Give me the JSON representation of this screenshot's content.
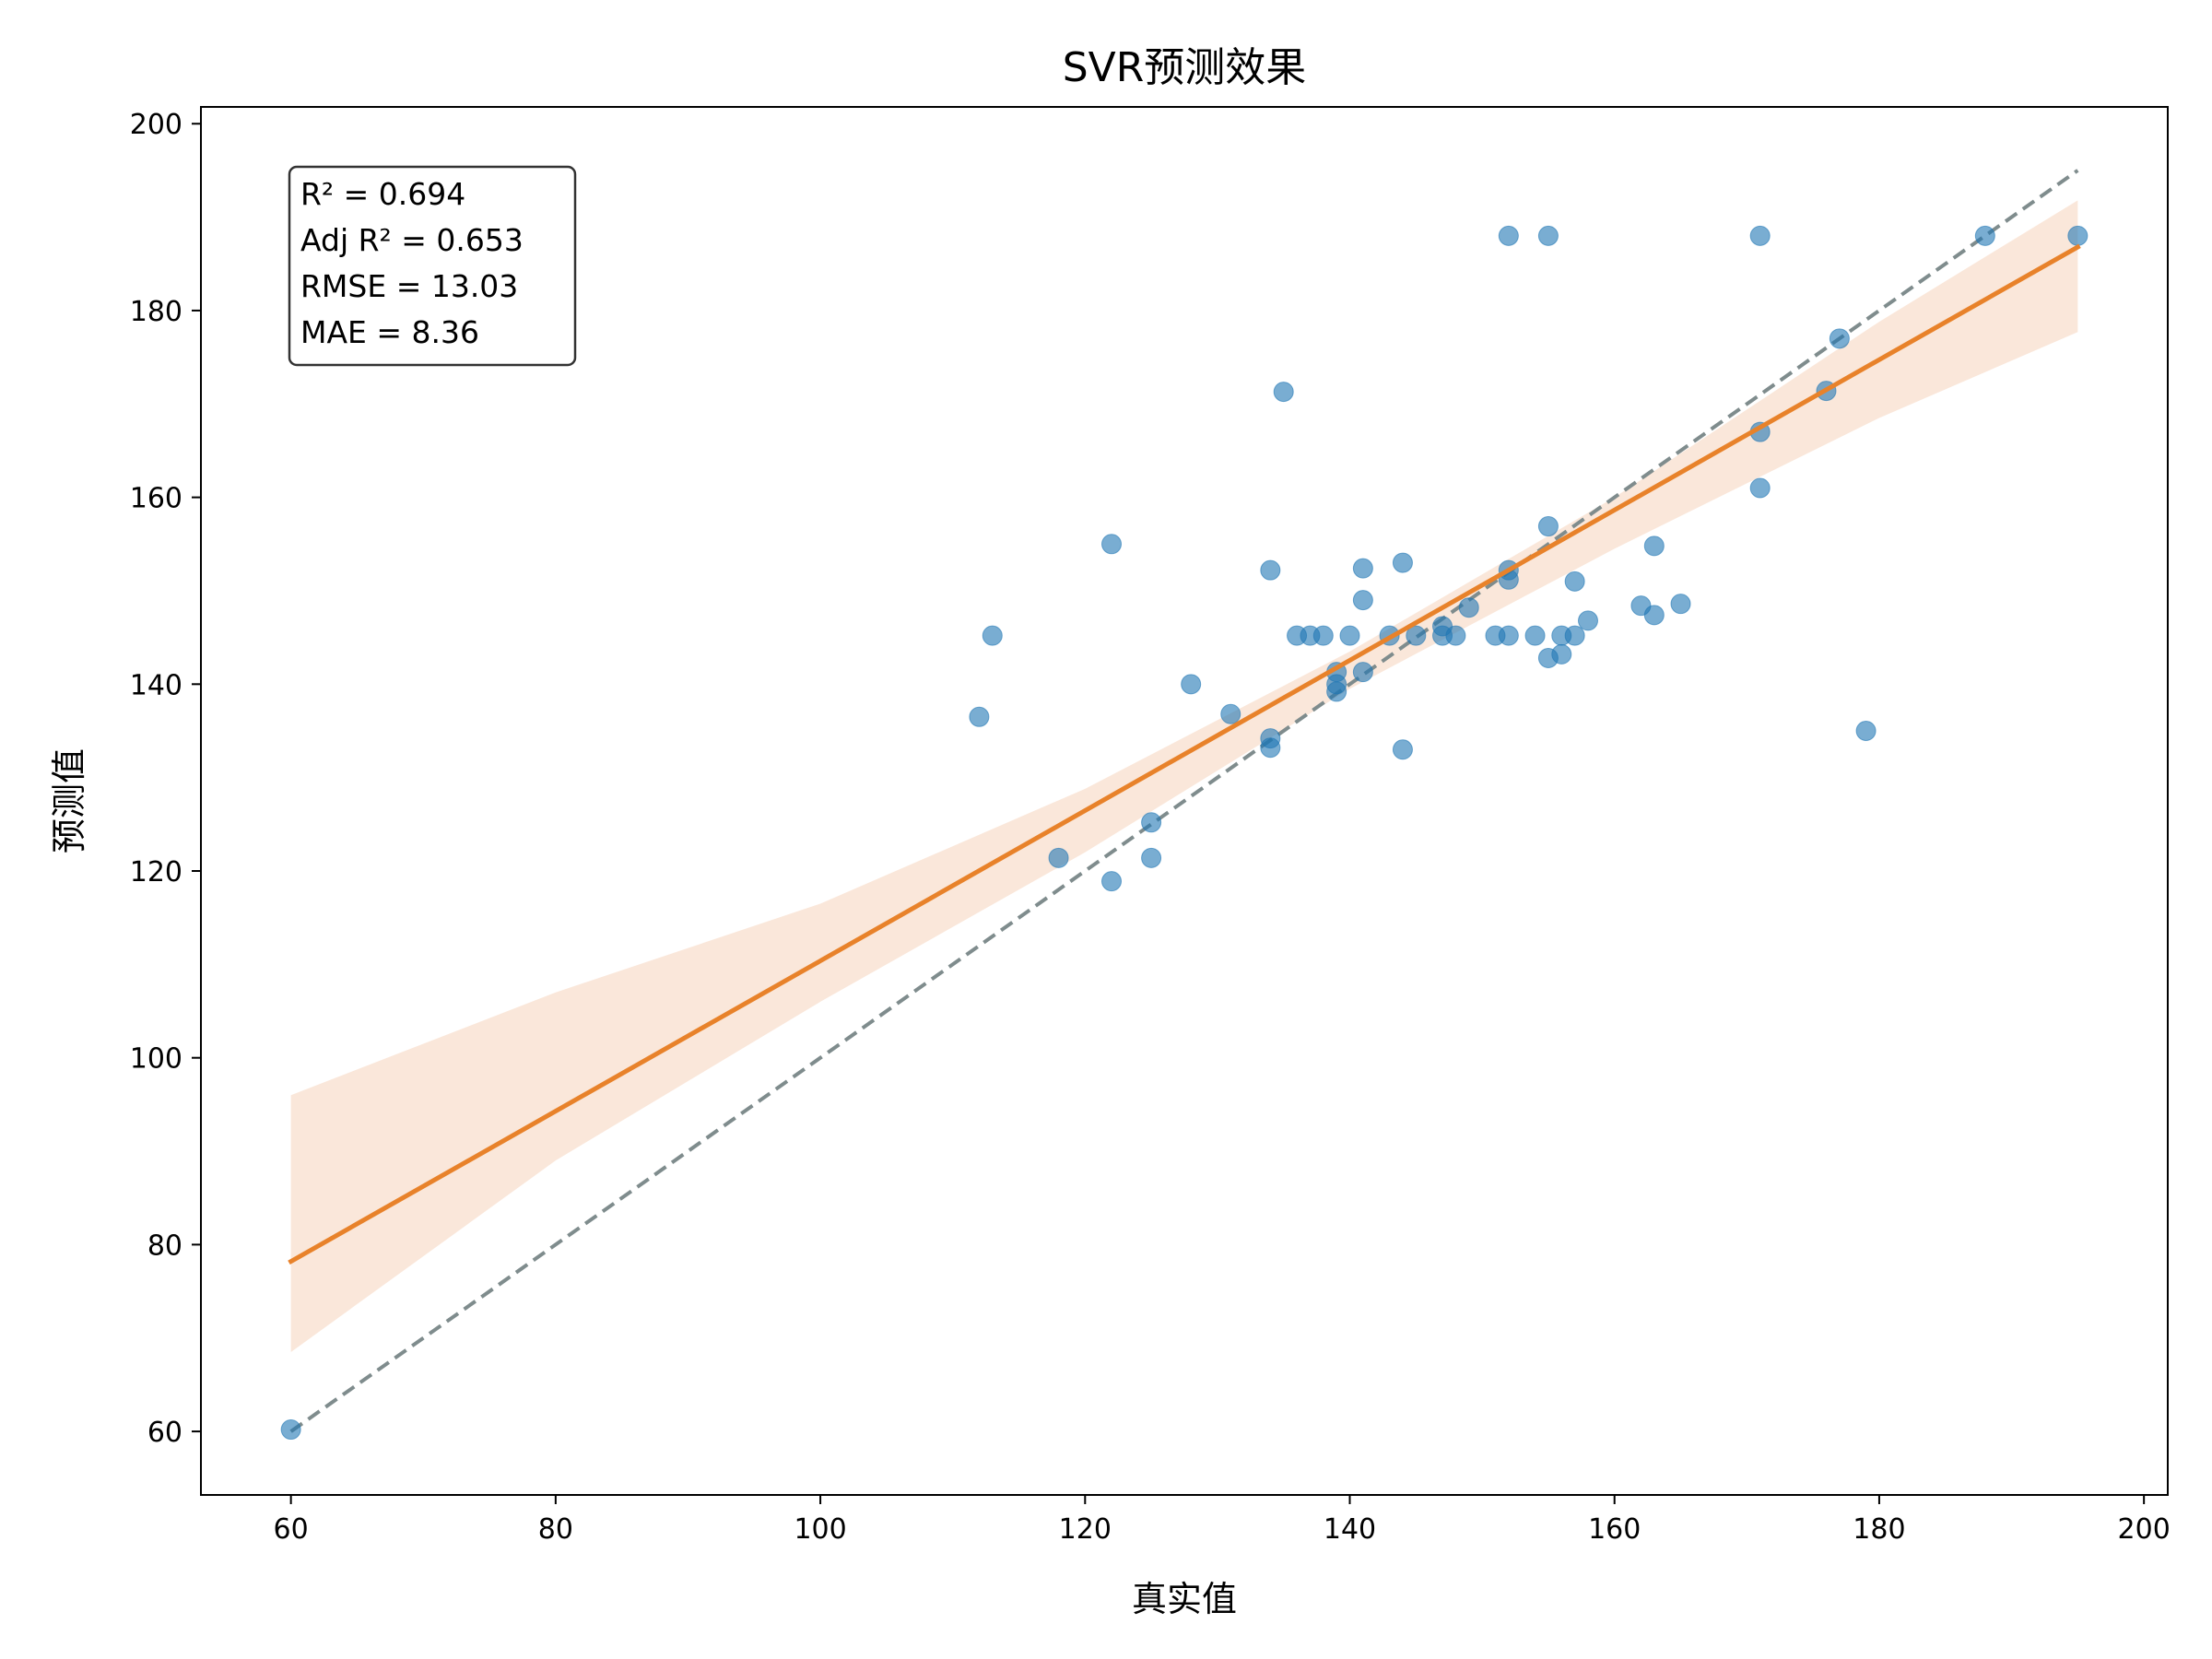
{
  "chart_data": {
    "type": "scatter",
    "title": "SVR预测效果",
    "xlabel": "真实值",
    "ylabel": "预测值",
    "xlim": [
      53.2,
      201.8
    ],
    "ylim": [
      53.2,
      201.8
    ],
    "xticks": [
      60,
      80,
      100,
      120,
      140,
      160,
      180,
      200
    ],
    "yticks": [
      60,
      80,
      100,
      120,
      140,
      160,
      180,
      200
    ],
    "grid": false,
    "stats": [
      "R² = 0.694",
      "Adj R² = 0.653",
      "RMSE = 13.03",
      "MAE = 8.36"
    ],
    "points": [
      {
        "x": 60,
        "y": 60.2
      },
      {
        "x": 112,
        "y": 136.5
      },
      {
        "x": 113,
        "y": 145.2
      },
      {
        "x": 118,
        "y": 121.4
      },
      {
        "x": 122,
        "y": 155
      },
      {
        "x": 122,
        "y": 118.9
      },
      {
        "x": 125,
        "y": 125.2
      },
      {
        "x": 125,
        "y": 121.4
      },
      {
        "x": 128,
        "y": 140
      },
      {
        "x": 131,
        "y": 136.8
      },
      {
        "x": 134,
        "y": 152.2
      },
      {
        "x": 134,
        "y": 134.2
      },
      {
        "x": 134,
        "y": 133.2
      },
      {
        "x": 135,
        "y": 171.3
      },
      {
        "x": 136,
        "y": 145.2
      },
      {
        "x": 137,
        "y": 145.2
      },
      {
        "x": 138,
        "y": 145.2
      },
      {
        "x": 139,
        "y": 141.3
      },
      {
        "x": 139,
        "y": 140
      },
      {
        "x": 139,
        "y": 139.2
      },
      {
        "x": 140,
        "y": 145.2
      },
      {
        "x": 141,
        "y": 152.4
      },
      {
        "x": 141,
        "y": 149
      },
      {
        "x": 141,
        "y": 141.3
      },
      {
        "x": 143,
        "y": 145.2
      },
      {
        "x": 144,
        "y": 153
      },
      {
        "x": 144,
        "y": 133
      },
      {
        "x": 145,
        "y": 145.2
      },
      {
        "x": 147,
        "y": 146.2
      },
      {
        "x": 147,
        "y": 145.2
      },
      {
        "x": 148,
        "y": 145.2
      },
      {
        "x": 149,
        "y": 148.2
      },
      {
        "x": 151,
        "y": 145.2
      },
      {
        "x": 152,
        "y": 188
      },
      {
        "x": 152,
        "y": 152.2
      },
      {
        "x": 152,
        "y": 151.2
      },
      {
        "x": 152,
        "y": 145.2
      },
      {
        "x": 154,
        "y": 145.2
      },
      {
        "x": 155,
        "y": 188
      },
      {
        "x": 155,
        "y": 156.9
      },
      {
        "x": 155,
        "y": 142.8
      },
      {
        "x": 156,
        "y": 145.2
      },
      {
        "x": 156,
        "y": 143.2
      },
      {
        "x": 157,
        "y": 151
      },
      {
        "x": 157,
        "y": 145.2
      },
      {
        "x": 158,
        "y": 146.8
      },
      {
        "x": 162,
        "y": 148.4
      },
      {
        "x": 163,
        "y": 154.8
      },
      {
        "x": 163,
        "y": 147.4
      },
      {
        "x": 165,
        "y": 148.6
      },
      {
        "x": 171,
        "y": 188
      },
      {
        "x": 171,
        "y": 167
      },
      {
        "x": 171,
        "y": 161
      },
      {
        "x": 176,
        "y": 171.4
      },
      {
        "x": 177,
        "y": 177
      },
      {
        "x": 179,
        "y": 135
      },
      {
        "x": 188,
        "y": 188
      },
      {
        "x": 195,
        "y": 188
      }
    ],
    "fit_line": {
      "x": [
        60,
        195
      ],
      "y": [
        78.2,
        186.8
      ]
    },
    "confidence_band": {
      "x": [
        60,
        80,
        100,
        120,
        140,
        160,
        180,
        195
      ],
      "lower": [
        68.5,
        89,
        106,
        122,
        139.5,
        154.5,
        168.5,
        177.7
      ],
      "upper": [
        96,
        107,
        116.5,
        128.8,
        143.5,
        160,
        178.8,
        191.8
      ]
    },
    "identity_line": {
      "x": [
        60,
        195
      ],
      "y": [
        60,
        195
      ]
    },
    "colors": {
      "points": "#1f77b4",
      "fit": "#e8822a",
      "band": "#f9e3d4",
      "identity": "#7f8c8d"
    }
  }
}
